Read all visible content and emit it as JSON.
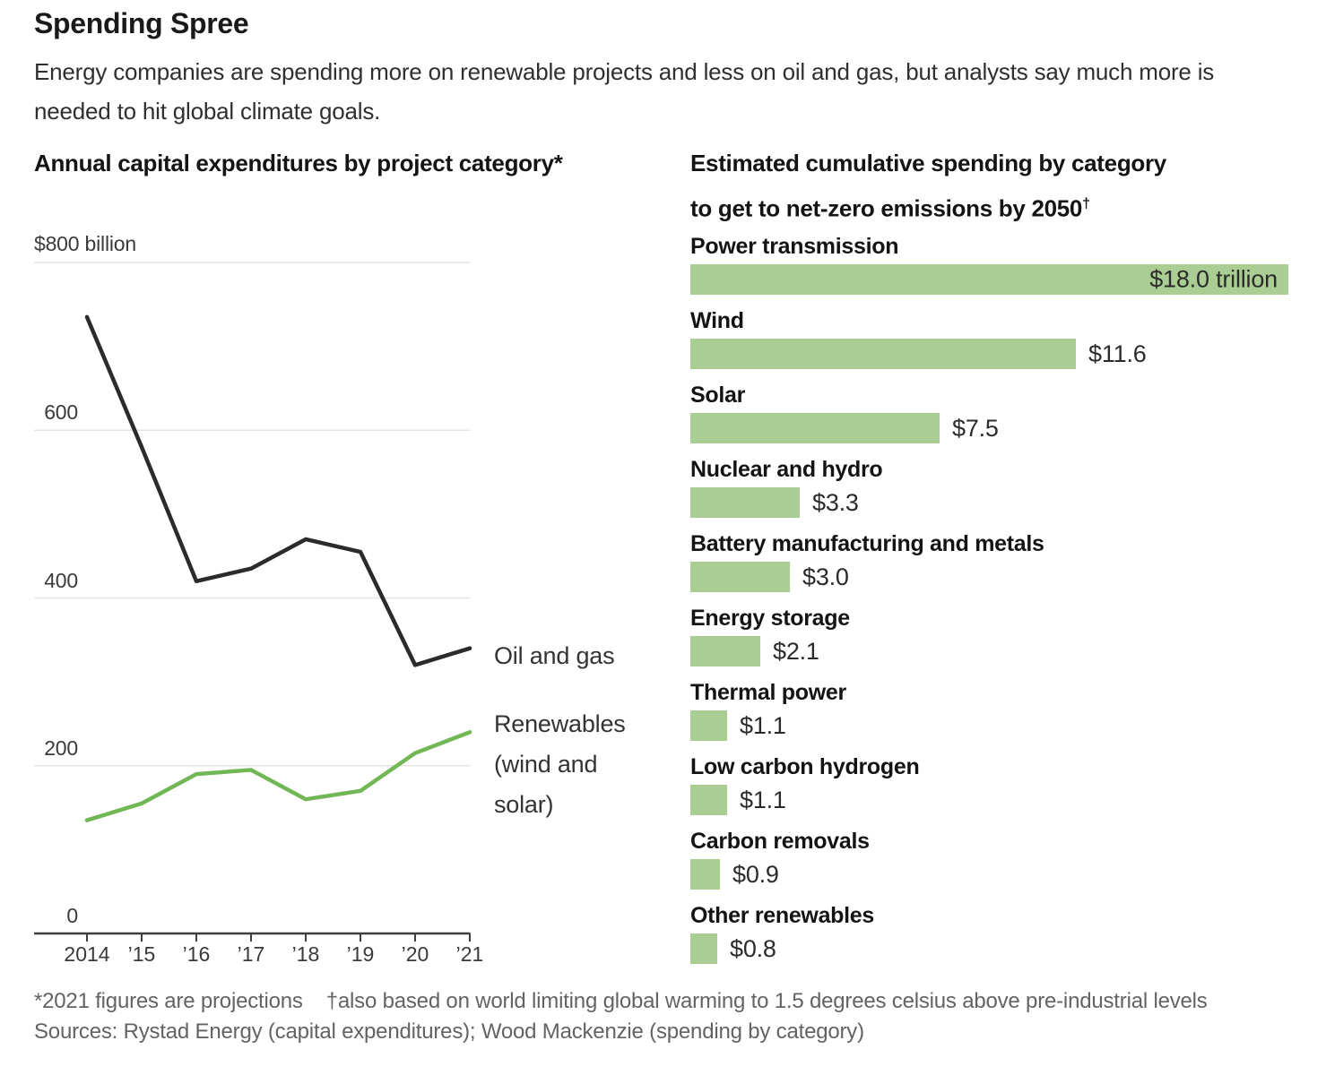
{
  "header": {
    "title": "Spending Spree",
    "subtitle": "Energy companies are spending more on renewable projects and less on oil and gas, but analysts say much more is needed to hit global climate goals."
  },
  "left_chart": {
    "title": "Annual capital expenditures by project category*",
    "y_axis_top_label": "$800 billion",
    "legend_oil": "Oil and gas",
    "legend_renewables": "Renewables (wind and solar)"
  },
  "right_chart": {
    "title_line1": "Estimated cumulative spending by category",
    "title_line2": "to get to net-zero emissions by 2050",
    "dagger": "†"
  },
  "footnotes": {
    "note1": "*2021 figures are projections",
    "note2": "†also based on world limiting global warming to 1.5 degrees celsius above pre-industrial levels",
    "sources": "Sources: Rystad Energy (capital expenditures); Wood Mackenzie (spending by category)"
  },
  "colors": {
    "bar_green": "#a9cd92",
    "line_green": "#72b755",
    "line_black": "#2b2b2b",
    "gridline": "#e4e4e4",
    "axis": "#3f3f3f"
  },
  "chart_data": [
    {
      "type": "line",
      "title": "Annual capital expenditures by project category*",
      "ylabel": "$ billion",
      "ylim": [
        0,
        800
      ],
      "y_ticks": [
        0,
        200,
        400,
        600,
        800
      ],
      "y_gridlines": [
        800,
        600,
        400,
        200
      ],
      "y_num_labels": [
        600,
        400,
        200,
        0
      ],
      "grid": true,
      "x": [
        2014,
        2015,
        2016,
        2017,
        2018,
        2019,
        2020,
        2021
      ],
      "x_tick_labels": [
        "2014",
        "’15",
        "’16",
        "’17",
        "’18",
        "’19",
        "’20",
        "’21"
      ],
      "series": [
        {
          "name": "Oil and gas",
          "color": "#2b2b2b",
          "values": [
            735,
            580,
            420,
            435,
            470,
            455,
            320,
            340
          ]
        },
        {
          "name": "Renewables (wind and solar)",
          "color": "#72b755",
          "values": [
            135,
            155,
            190,
            195,
            160,
            170,
            215,
            240
          ]
        }
      ],
      "legend_position": "right-of-line-ends"
    },
    {
      "type": "bar",
      "orientation": "horizontal",
      "title": "Estimated cumulative spending by category to get to net-zero emissions by 2050†",
      "xlim": [
        0,
        18
      ],
      "categories": [
        "Power transmission",
        "Wind",
        "Solar",
        "Nuclear and hydro",
        "Battery manufacturing and metals",
        "Energy storage",
        "Thermal power",
        "Low carbon hydrogen",
        "Carbon removals",
        "Other renewables"
      ],
      "values": [
        18.0,
        11.6,
        7.5,
        3.3,
        3.0,
        2.1,
        1.1,
        1.1,
        0.9,
        0.8
      ],
      "value_labels": [
        "$18.0 trillion",
        "$11.6",
        "$7.5",
        "$3.3",
        "$3.0",
        "$2.1",
        "$1.1",
        "$1.1",
        "$0.9",
        "$0.8"
      ],
      "value_label_positions": [
        "inside",
        "outside",
        "outside",
        "outside",
        "outside",
        "outside",
        "outside",
        "outside",
        "outside",
        "outside"
      ]
    }
  ]
}
